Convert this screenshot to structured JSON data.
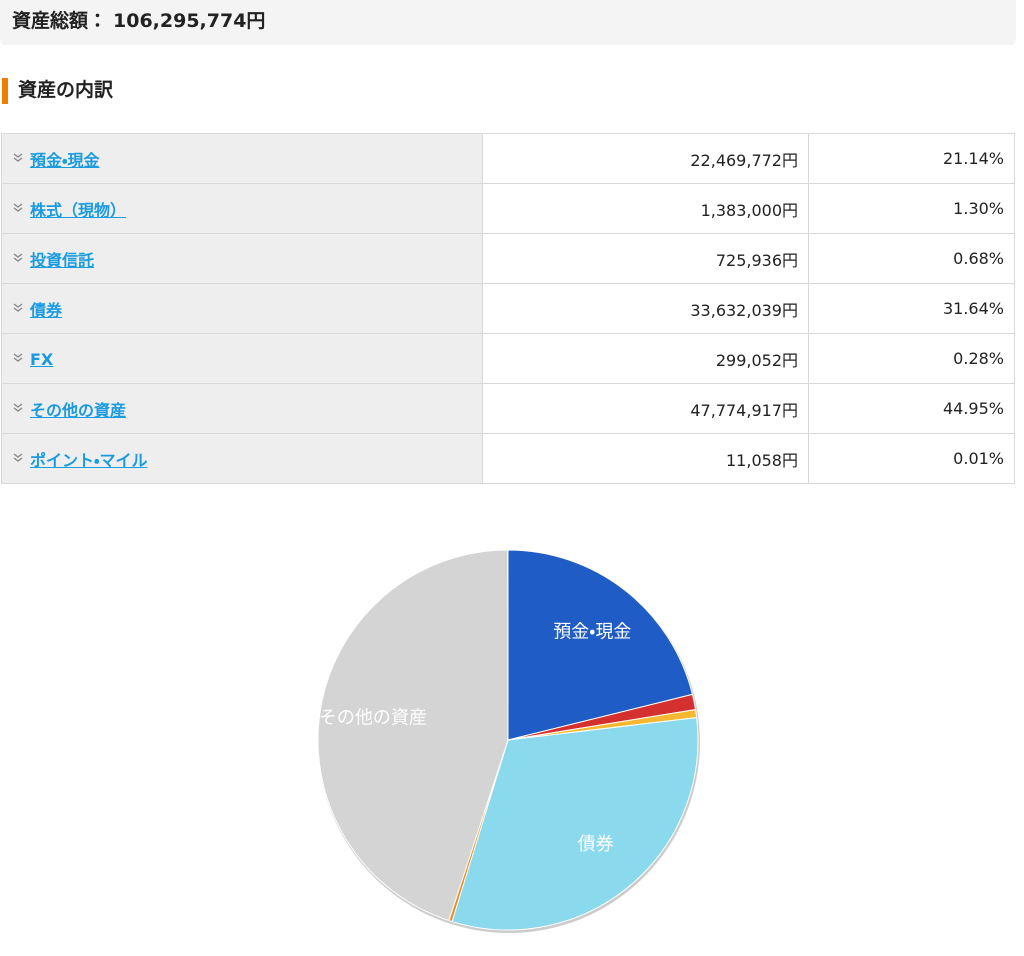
{
  "header": {
    "label": "資産総額：",
    "value": "106,295,774円"
  },
  "section": {
    "title": "資産の内訳"
  },
  "table": {
    "rows": [
      [
        "預金・現金",
        "22,469,772円",
        "21.14%"
      ],
      [
        "株式（現物）",
        "1,383,000円",
        "1.30%"
      ],
      [
        "投資信託",
        "725,936円",
        "0.68%"
      ],
      [
        "債券",
        "33,632,039円",
        "31.64%"
      ],
      [
        "FX",
        "299,052円",
        "0.28%"
      ],
      [
        "その他の資産",
        "47,774,917円",
        "44.95%"
      ],
      [
        "ポイント・マイル",
        "11,058円",
        "0.01%"
      ]
    ]
  },
  "chart_data": {
    "type": "pie",
    "categories": [
      "預金・現金",
      null,
      null,
      "債券",
      null,
      "その他の資産",
      null
    ],
    "values": [
      21.14,
      1.3,
      0.68,
      31.64,
      0.28,
      44.95,
      0.01
    ],
    "colors": [
      "#1f5cc6",
      "#d3302f",
      "#f5b830",
      "#8bd9ec",
      "#f08c1e",
      "#d4d4d4",
      "#4caf50"
    ]
  }
}
